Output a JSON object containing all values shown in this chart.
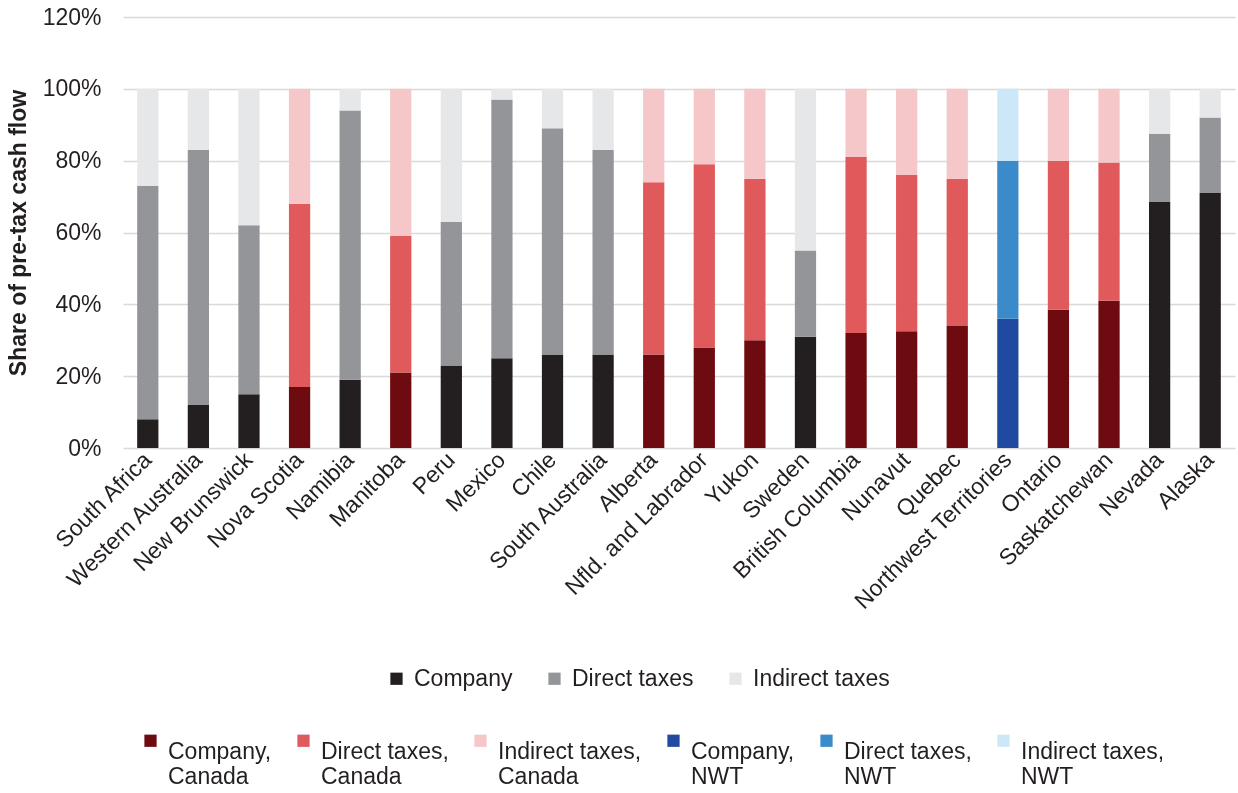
{
  "chart_data": {
    "type": "bar",
    "stacked": true,
    "ylabel": "Share of pre-tax cash flow",
    "categories": [
      "South Africa",
      "Western Australia",
      "New Brunswick",
      "Nova Scotia",
      "Namibia",
      "Manitoba",
      "Peru",
      "Mexico",
      "Chile",
      "South Australia",
      "Alberta",
      "Nfld. and Labrador",
      "Yukon",
      "Sweden",
      "British Columbia",
      "Nunavut",
      "Quebec",
      "Northwest Territories",
      "Ontario",
      "Saskatchewan",
      "Nevada",
      "Alaska"
    ],
    "series": [
      {
        "name": "Company",
        "color": "#231f20",
        "values": [
          8,
          12,
          15,
          null,
          19,
          null,
          23,
          25,
          26,
          26,
          null,
          null,
          null,
          31,
          null,
          null,
          null,
          null,
          null,
          null,
          68.5,
          71
        ]
      },
      {
        "name": "Direct taxes",
        "color": "#939598",
        "values": [
          65,
          71,
          47,
          null,
          75,
          null,
          40,
          72,
          63,
          57,
          null,
          null,
          null,
          24,
          null,
          null,
          null,
          null,
          null,
          null,
          19,
          21
        ]
      },
      {
        "name": "Indirect taxes",
        "color": "#e6e7e8",
        "values": [
          27,
          17,
          38,
          null,
          6,
          null,
          37,
          3,
          11,
          17,
          null,
          null,
          null,
          45,
          null,
          null,
          null,
          null,
          null,
          null,
          12.5,
          8
        ]
      },
      {
        "name": "Company, Canada",
        "color": "#6d0b10",
        "values": [
          null,
          null,
          null,
          17,
          null,
          21,
          null,
          null,
          null,
          null,
          26,
          28,
          30,
          null,
          32,
          32.5,
          34,
          null,
          38.5,
          41,
          null,
          null
        ]
      },
      {
        "name": "Direct taxes, Canada",
        "color": "#e05a5b",
        "values": [
          null,
          null,
          null,
          51,
          null,
          38,
          null,
          null,
          null,
          null,
          48,
          51,
          45,
          null,
          49,
          43.5,
          41,
          null,
          41.5,
          38.5,
          null,
          null
        ]
      },
      {
        "name": "Indirect taxes, Canada",
        "color": "#f5c7c8",
        "values": [
          null,
          null,
          null,
          32,
          null,
          41,
          null,
          null,
          null,
          null,
          26,
          21,
          25,
          null,
          19,
          24,
          25,
          null,
          20,
          20.5,
          null,
          null
        ]
      },
      {
        "name": "Company, NWT",
        "color": "#1f4a9f",
        "values": [
          null,
          null,
          null,
          null,
          null,
          null,
          null,
          null,
          null,
          null,
          null,
          null,
          null,
          null,
          null,
          null,
          null,
          36,
          null,
          null,
          null,
          null
        ]
      },
      {
        "name": "Direct taxes, NWT",
        "color": "#3b8bcb",
        "values": [
          null,
          null,
          null,
          null,
          null,
          null,
          null,
          null,
          null,
          null,
          null,
          null,
          null,
          null,
          null,
          null,
          null,
          44,
          null,
          null,
          null,
          null
        ]
      },
      {
        "name": "Indirect taxes, NWT",
        "color": "#cce8f8",
        "values": [
          null,
          null,
          null,
          null,
          null,
          null,
          null,
          null,
          null,
          null,
          null,
          null,
          null,
          null,
          null,
          null,
          null,
          20,
          null,
          null,
          null,
          null
        ]
      }
    ],
    "ylim": [
      0,
      120
    ],
    "yticks": [
      {
        "value": 0,
        "label": "0%"
      },
      {
        "value": 20,
        "label": "20%"
      },
      {
        "value": 40,
        "label": "40%"
      },
      {
        "value": 60,
        "label": "60%"
      },
      {
        "value": 80,
        "label": "80%"
      },
      {
        "value": 100,
        "label": "100%"
      },
      {
        "value": 120,
        "label": "120%"
      }
    ],
    "grid": "y",
    "legend": "bottom"
  }
}
